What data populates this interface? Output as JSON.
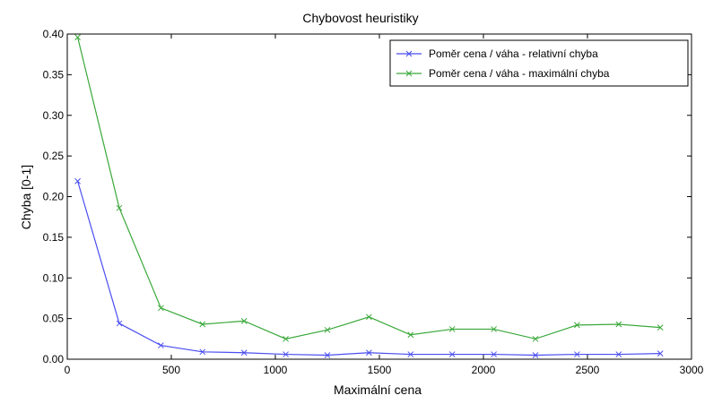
{
  "chart_data": {
    "type": "line",
    "title": "Chybovost heuristiky",
    "xlabel": "Maximální cena",
    "ylabel": "Chyba [0-1]",
    "xlim": [
      0,
      3000
    ],
    "ylim": [
      0,
      0.4
    ],
    "xticks": [
      0,
      500,
      1000,
      1500,
      2000,
      2500,
      3000
    ],
    "xtick_labels": [
      "0",
      "500",
      "1000",
      "1500",
      "2000",
      "2500",
      "3000"
    ],
    "yticks": [
      0,
      0.05,
      0.1,
      0.15,
      0.2,
      0.25,
      0.3,
      0.35,
      0.4
    ],
    "ytick_labels": [
      "0.00",
      "0.05",
      "0.10",
      "0.15",
      "0.20",
      "0.25",
      "0.30",
      "0.35",
      "0.40"
    ],
    "grid": false,
    "legend_position": "top-right",
    "x": [
      50,
      250,
      450,
      650,
      850,
      1050,
      1250,
      1450,
      1650,
      1850,
      2050,
      2250,
      2450,
      2650,
      2850
    ],
    "series": [
      {
        "name": "Poměr cena / váha - relativní chyba",
        "color": "#4a4ef0",
        "marker": "x",
        "values": [
          0.219,
          0.044,
          0.017,
          0.009,
          0.008,
          0.006,
          0.005,
          0.008,
          0.006,
          0.006,
          0.006,
          0.005,
          0.006,
          0.006,
          0.007
        ]
      },
      {
        "name": "Poměr cena / váha - maximální chyba",
        "color": "#3aa83a",
        "marker": "x",
        "values": [
          0.396,
          0.186,
          0.063,
          0.043,
          0.047,
          0.025,
          0.036,
          0.052,
          0.03,
          0.037,
          0.037,
          0.025,
          0.042,
          0.043,
          0.039
        ]
      }
    ]
  }
}
